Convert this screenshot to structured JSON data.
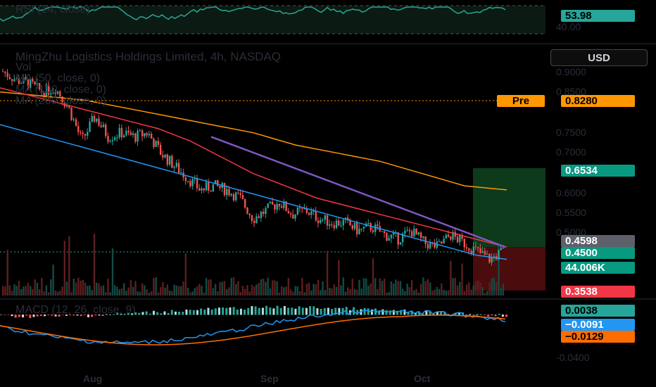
{
  "chart_title": "MingZhu Logistics Holdings Limited, 4h, NASDAQ",
  "indicators": {
    "vol": "Vol",
    "ma50": "MA (50, close, 0)",
    "ma100": "MA (100, close, 0)",
    "ma200": "MA (200, close, 0)",
    "rsi": "RSI (14, close)",
    "macd": "MACD (12, 26, close, 9)"
  },
  "currency_button": "USD",
  "price_axis_ticks": [
    "0.9000",
    "0.8500",
    "0.7500",
    "0.7000",
    "0.6000",
    "0.5500",
    "0.5000"
  ],
  "rsi_axis_ticks": [
    "40.00"
  ],
  "macd_axis_ticks": [
    "-0.0400"
  ],
  "x_ticks": [
    "Aug",
    "Sep",
    "Oct"
  ],
  "labels": {
    "rsi_value": "53.98",
    "pre_tag": "Pre",
    "pre_price": "0.8280",
    "target_price": "0.6534",
    "ma_price": "0.4598",
    "last_price": "0.4500",
    "volume": "44.006K",
    "stop_price": "0.3538",
    "macd_hist": "0.0038",
    "macd_line": "−0.0091",
    "macd_signal": "−0.0129"
  },
  "colors": {
    "up": "#26a69a",
    "down": "#ef5350",
    "ma50": "#2196f3",
    "ma100": "#f23645",
    "ma200": "#ff9800",
    "trendline": "#7e57c2",
    "rsi": "#26a69a",
    "macd_line": "#2196f3",
    "macd_signal": "#ff6d00"
  },
  "chart_data": {
    "type": "line",
    "y_range_price": [
      0.3538,
      0.9
    ],
    "price_close_path": [
      0.89,
      0.87,
      0.86,
      0.84,
      0.85,
      0.8,
      0.72,
      0.78,
      0.73,
      0.74,
      0.73,
      0.74,
      0.69,
      0.66,
      0.63,
      0.6,
      0.61,
      0.6,
      0.58,
      0.53,
      0.55,
      0.57,
      0.54,
      0.55,
      0.53,
      0.52,
      0.52,
      0.5,
      0.51,
      0.49,
      0.48,
      0.5,
      0.47,
      0.46,
      0.49,
      0.47,
      0.45,
      0.43,
      0.45
    ],
    "ma50": [
      0.76,
      0.74,
      0.72,
      0.7,
      0.68,
      0.66,
      0.64,
      0.62,
      0.6,
      0.58,
      0.56,
      0.54,
      0.52,
      0.5,
      0.48,
      0.46,
      0.44,
      0.43
    ],
    "ma100": [
      0.85,
      0.83,
      0.81,
      0.79,
      0.77,
      0.75,
      0.72,
      0.68,
      0.64,
      0.61,
      0.58,
      0.56,
      0.54,
      0.52,
      0.5,
      0.48,
      0.46
    ],
    "ma200": [
      0.84,
      0.83,
      0.82,
      0.8,
      0.78,
      0.76,
      0.74,
      0.71,
      0.69,
      0.67,
      0.64,
      0.61,
      0.6
    ],
    "trendline": [
      0.73,
      0.46
    ],
    "target_zone": [
      0.4598,
      0.6534
    ],
    "stop_zone": [
      0.3538,
      0.4598
    ]
  }
}
